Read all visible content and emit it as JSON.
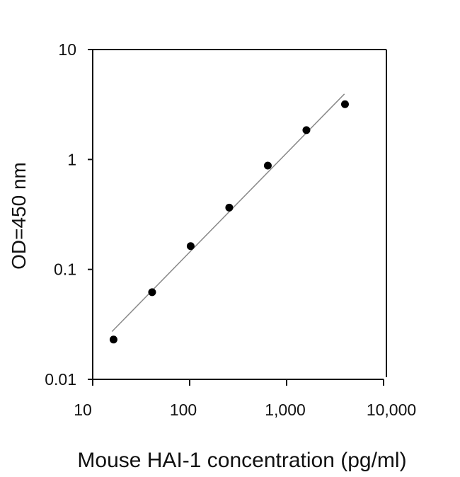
{
  "chart_data": {
    "type": "scatter",
    "title": "",
    "xlabel": "Mouse HAI-1 concentration (pg/ml)",
    "ylabel": "OD=450 nm",
    "xscale": "log",
    "yscale": "log",
    "xlim": [
      10,
      10000
    ],
    "ylim": [
      0.01,
      10
    ],
    "x_ticks": [
      10,
      100,
      1000,
      10000
    ],
    "x_tick_labels": [
      "10",
      "100",
      "1,000",
      "10,000"
    ],
    "y_ticks": [
      0.01,
      0.1,
      1,
      10
    ],
    "y_tick_labels": [
      "0.01",
      "0.1",
      "1",
      "10"
    ],
    "grid": false,
    "legend": null,
    "series": [
      {
        "name": "Standard",
        "marker": "filled-circle",
        "color": "#000000",
        "x": [
          16.4,
          41,
          102.4,
          256,
          640,
          1600,
          4000
        ],
        "y": [
          0.023,
          0.062,
          0.163,
          0.365,
          0.88,
          1.85,
          3.18
        ]
      },
      {
        "name": "Fit line",
        "style": "line",
        "color": "#888888",
        "x": [
          15.8,
          3945
        ],
        "y": [
          0.0272,
          3.94
        ]
      }
    ]
  }
}
